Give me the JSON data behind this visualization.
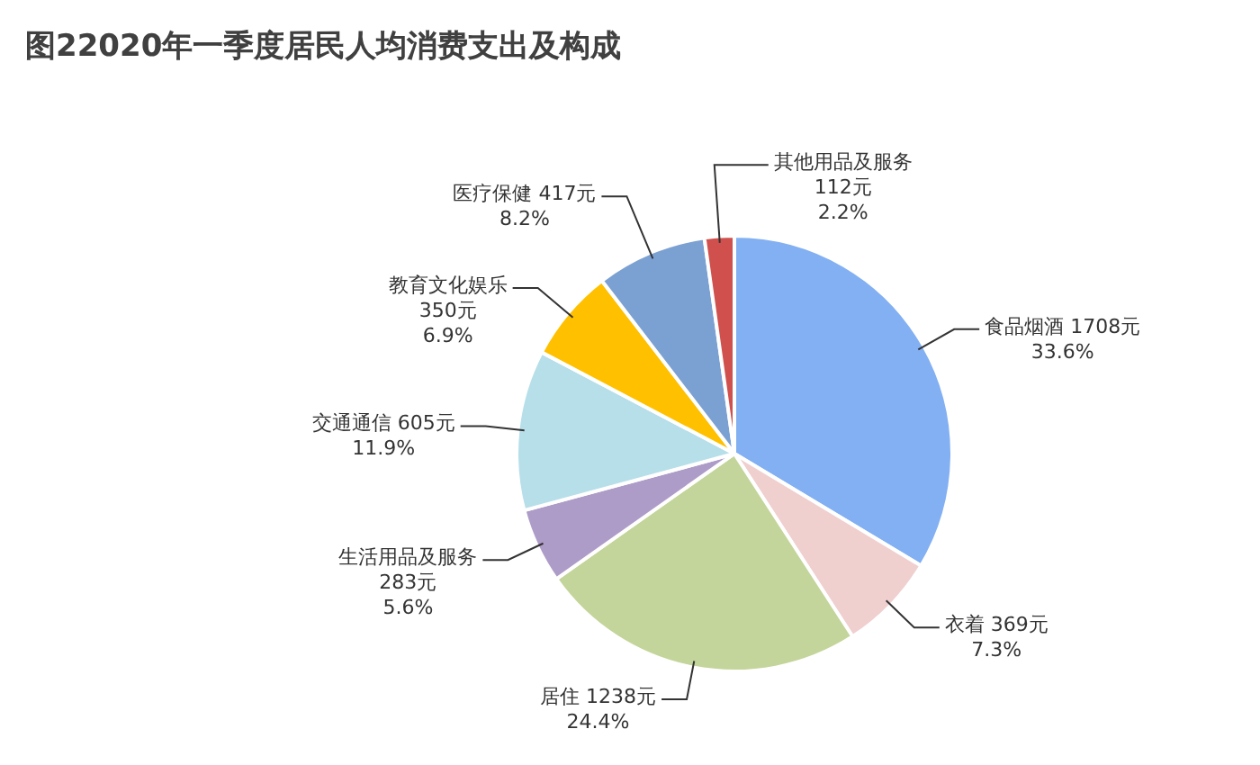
{
  "chart_data": {
    "type": "pie",
    "title": "图22020年一季度居民人均消费支出及构成",
    "categories": [
      "食品烟酒",
      "衣着",
      "居住",
      "生活用品及服务",
      "交通通信",
      "教育文化娱乐",
      "医疗保健",
      "其他用品及服务"
    ],
    "values": [
      1708,
      369,
      1238,
      283,
      605,
      350,
      417,
      112
    ],
    "value_labels": [
      "1708元\n33.6%",
      "369元\n7.3%",
      "1238元\n24.4%",
      "283元\n5.6%",
      "605元\n11.9%",
      "350元\n6.9%",
      "417元\n8.2%",
      "112元\n2.2%"
    ],
    "colors": [
      "#82b0f2",
      "#f0cfcf",
      "#c3d59a",
      "#ae9cc8",
      "#b7dfe9",
      "#ffc000",
      "#7ba1d2",
      "#d0504d"
    ]
  }
}
